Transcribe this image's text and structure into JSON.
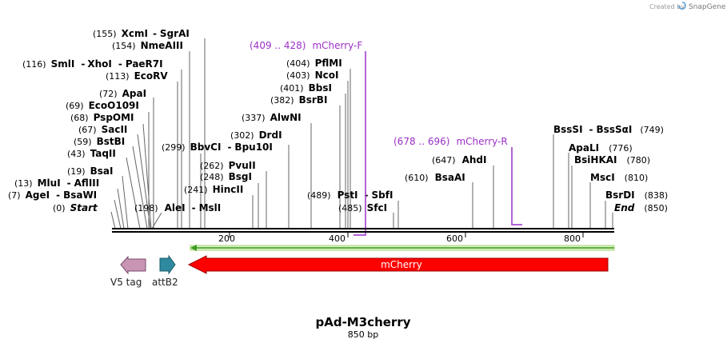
{
  "credit": {
    "text": "Created by",
    "brand": "SnapGene"
  },
  "plasmid": {
    "name": "pAd-M3cherry",
    "length_label": "850 bp"
  },
  "sites_left": [
    {
      "pos": "(155)",
      "name": "XcmI",
      "sep": "-",
      "name2": "SgrAI"
    },
    {
      "pos": "(154)",
      "name": "NmeAIII"
    },
    {
      "pos": "(116)",
      "name": "SmlI",
      "sep": "-",
      "name2": "XhoI",
      "sep2": "-",
      "name3": "PaeR7I"
    },
    {
      "pos": "(113)",
      "name": "EcoRV"
    },
    {
      "pos": "(72)",
      "name": "ApaI"
    },
    {
      "pos": "(69)",
      "name": "EcoO109I"
    },
    {
      "pos": "(68)",
      "name": "PspOMI"
    },
    {
      "pos": "(67)",
      "name": "SacII"
    },
    {
      "pos": "(59)",
      "name": "BstBI"
    },
    {
      "pos": "(43)",
      "name": "TaqII"
    },
    {
      "pos": "(19)",
      "name": "BsaI"
    },
    {
      "pos": "(13)",
      "name": "MluI",
      "sep": "-",
      "name2": "AflIII"
    },
    {
      "pos": "(7)",
      "name": "AgeI",
      "sep": "-",
      "name2": "BsaWI"
    },
    {
      "pos": "(0)",
      "name": "Start"
    }
  ],
  "sites_middle": [
    {
      "pos": "(198)",
      "name": "AleI",
      "sep": "-",
      "name2": "MslI"
    },
    {
      "pos": "(299)",
      "name": "BbvCI",
      "sep": "-",
      "name2": "Bpu10I"
    },
    {
      "pos": "(302)",
      "name": "DrdI"
    },
    {
      "pos": "(262)",
      "name": "PvuII"
    },
    {
      "pos": "(248)",
      "name": "BsgI"
    },
    {
      "pos": "(241)",
      "name": "HincII"
    },
    {
      "pos": "(337)",
      "name": "AlwNI"
    },
    {
      "pos": "(404)",
      "name": "PflMI"
    },
    {
      "pos": "(403)",
      "name": "NcoI"
    },
    {
      "pos": "(401)",
      "name": "BbsI"
    },
    {
      "pos": "(382)",
      "name": "BsrBI"
    },
    {
      "pos": "(489)",
      "name": "PstI",
      "sep": "-",
      "name2": "SbfI"
    },
    {
      "pos": "(485)",
      "name": "SfcI"
    },
    {
      "pos": "(647)",
      "name": "AhdI"
    },
    {
      "pos": "(610)",
      "name": "BsaAI"
    }
  ],
  "sites_right": [
    {
      "name": "BssSI",
      "sep": "-",
      "name2": "BssSαI",
      "pos": "(749)"
    },
    {
      "name": "ApaLI",
      "pos": "(776)"
    },
    {
      "name": "BsiHKAI",
      "pos": "(780)"
    },
    {
      "name": "MscI",
      "pos": "(810)"
    },
    {
      "name": "BsrDI",
      "pos": "(838)"
    },
    {
      "name": "End",
      "pos": "(850)"
    }
  ],
  "primers": [
    {
      "range": "(409 .. 428)",
      "name": "mCherry-F"
    },
    {
      "range": "(678 .. 696)",
      "name": "mCherry-R"
    }
  ],
  "ruler": {
    "ticks": [
      "200",
      "400",
      "600",
      "800"
    ]
  },
  "features": [
    {
      "name": "V5 tag",
      "color": "#c896b4"
    },
    {
      "name": "attB2",
      "color": "#2f8aa0"
    },
    {
      "name": "mCherry",
      "color": "#ff0000"
    }
  ],
  "colors": {
    "primer": "#9b30c8",
    "orf": "#a8d878",
    "orf_line": "#3a9a20"
  }
}
